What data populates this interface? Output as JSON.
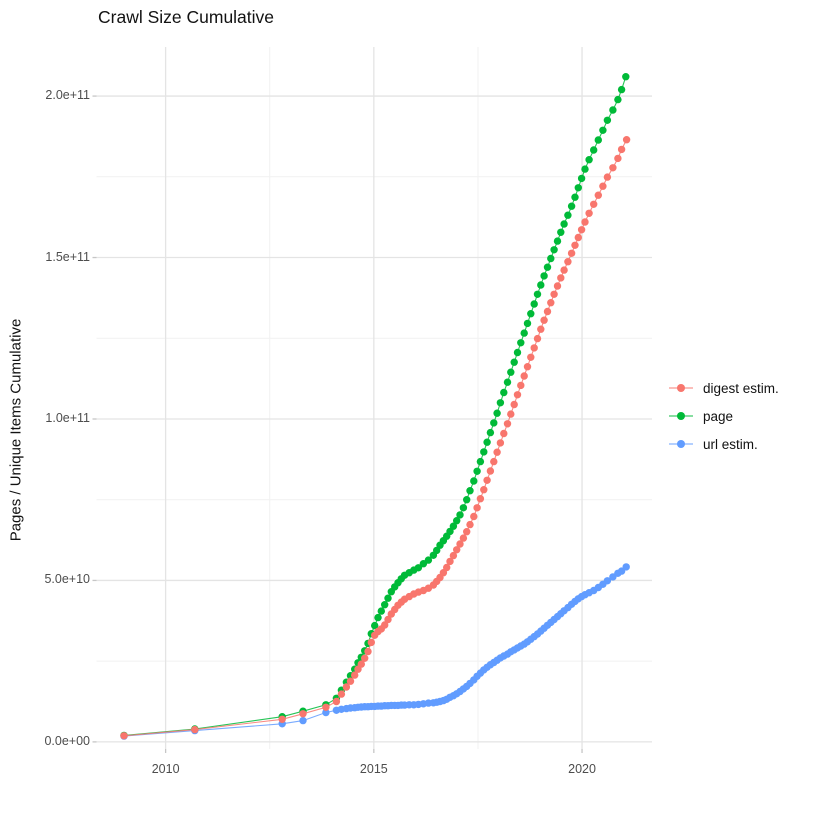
{
  "title": "Crawl Size Cumulative",
  "y_axis_title": "Pages / Unique Items Cumulative",
  "legend": {
    "position": "right",
    "items": [
      {
        "label": "digest estim.",
        "color": "#F8766D"
      },
      {
        "label": "page",
        "color": "#00BA38"
      },
      {
        "label": "url estim.",
        "color": "#619CFF"
      }
    ]
  },
  "colors": {
    "background": "#ffffff",
    "grid_major": "#e4e4e4",
    "grid_minor": "#f1f1f1",
    "tick_mark": "#c6c6c6",
    "tick_text": "#4d4d4d",
    "title_text": "#121212"
  },
  "chart_data": {
    "type": "scatter",
    "title": "Crawl Size Cumulative",
    "xlabel": "",
    "ylabel": "Pages / Unique Items Cumulative",
    "grid": true,
    "legend_position": "right",
    "x_unit": "year",
    "y_unit": "count (values stored in billions, 1e9)",
    "xlim": [
      2008.34,
      2021.68
    ],
    "ylim_e9": [
      -2.2,
      215.2
    ],
    "x_major_ticks": [
      {
        "value": 2010,
        "label": "2010"
      },
      {
        "value": 2015,
        "label": "2015"
      },
      {
        "value": 2020,
        "label": "2020"
      }
    ],
    "x_minor_ticks": [
      2012.5,
      2017.5
    ],
    "y_major_ticks": [
      {
        "value_e9": 0,
        "label": "0.0e+00"
      },
      {
        "value_e9": 50,
        "label": "5.0e+10"
      },
      {
        "value_e9": 100,
        "label": "1.0e+11"
      },
      {
        "value_e9": 150,
        "label": "1.5e+11"
      },
      {
        "value_e9": 200,
        "label": "2.0e+11"
      }
    ],
    "y_minor_ticks_e9": [
      25,
      75,
      125,
      175
    ],
    "series": [
      {
        "name": "digest estim.",
        "color": "#F8766D",
        "points_year_value_e9": [
          [
            2009.0,
            1.9
          ],
          [
            2010.7,
            3.8
          ],
          [
            2012.8,
            7.0
          ],
          [
            2013.3,
            8.7
          ],
          [
            2013.85,
            10.7
          ],
          [
            2014.1,
            12.5
          ],
          [
            2014.22,
            14.8
          ],
          [
            2014.34,
            17.0
          ],
          [
            2014.44,
            18.8
          ],
          [
            2014.54,
            20.7
          ],
          [
            2014.62,
            22.5
          ],
          [
            2014.7,
            24.1
          ],
          [
            2014.78,
            25.9
          ],
          [
            2014.86,
            28.0
          ],
          [
            2014.94,
            30.8
          ],
          [
            2015.02,
            33.0
          ],
          [
            2015.1,
            34.2
          ],
          [
            2015.18,
            35.0
          ],
          [
            2015.26,
            36.2
          ],
          [
            2015.34,
            37.9
          ],
          [
            2015.42,
            39.6
          ],
          [
            2015.5,
            41.0
          ],
          [
            2015.58,
            42.3
          ],
          [
            2015.66,
            43.3
          ],
          [
            2015.74,
            44.2
          ],
          [
            2015.85,
            45.0
          ],
          [
            2015.96,
            45.8
          ],
          [
            2016.07,
            46.4
          ],
          [
            2016.19,
            46.9
          ],
          [
            2016.31,
            47.6
          ],
          [
            2016.43,
            48.6
          ],
          [
            2016.51,
            49.7
          ],
          [
            2016.59,
            50.9
          ],
          [
            2016.67,
            52.4
          ],
          [
            2016.75,
            54.0
          ],
          [
            2016.83,
            55.9
          ],
          [
            2016.91,
            57.7
          ],
          [
            2016.99,
            59.5
          ],
          [
            2017.07,
            61.3
          ],
          [
            2017.15,
            63.1
          ],
          [
            2017.23,
            65.1
          ],
          [
            2017.31,
            67.3
          ],
          [
            2017.4,
            69.8
          ],
          [
            2017.48,
            72.5
          ],
          [
            2017.56,
            75.3
          ],
          [
            2017.64,
            78.1
          ],
          [
            2017.72,
            81.0
          ],
          [
            2017.8,
            83.9
          ],
          [
            2017.88,
            86.8
          ],
          [
            2017.96,
            89.7
          ],
          [
            2018.04,
            92.6
          ],
          [
            2018.12,
            95.5
          ],
          [
            2018.21,
            98.5
          ],
          [
            2018.29,
            101.5
          ],
          [
            2018.37,
            104.5
          ],
          [
            2018.45,
            107.5
          ],
          [
            2018.53,
            110.4
          ],
          [
            2018.61,
            113.3
          ],
          [
            2018.69,
            116.2
          ],
          [
            2018.77,
            119.1
          ],
          [
            2018.85,
            122.0
          ],
          [
            2018.93,
            124.9
          ],
          [
            2019.01,
            127.8
          ],
          [
            2019.09,
            130.6
          ],
          [
            2019.17,
            133.3
          ],
          [
            2019.25,
            136.0
          ],
          [
            2019.33,
            138.6
          ],
          [
            2019.41,
            141.2
          ],
          [
            2019.49,
            143.7
          ],
          [
            2019.57,
            146.1
          ],
          [
            2019.66,
            148.7
          ],
          [
            2019.75,
            151.3
          ],
          [
            2019.83,
            153.8
          ],
          [
            2019.91,
            156.2
          ],
          [
            2019.99,
            158.6
          ],
          [
            2020.07,
            161.0
          ],
          [
            2020.17,
            163.7
          ],
          [
            2020.28,
            166.5
          ],
          [
            2020.39,
            169.3
          ],
          [
            2020.5,
            172.1
          ],
          [
            2020.61,
            174.9
          ],
          [
            2020.74,
            177.8
          ],
          [
            2020.86,
            180.7
          ],
          [
            2020.95,
            183.5
          ],
          [
            2021.07,
            186.5
          ]
        ]
      },
      {
        "name": "page",
        "color": "#00BA38",
        "points_year_value_e9": [
          [
            2009.0,
            2.0
          ],
          [
            2010.7,
            4.0
          ],
          [
            2012.8,
            7.8
          ],
          [
            2013.3,
            9.5
          ],
          [
            2013.85,
            11.5
          ],
          [
            2014.1,
            13.5
          ],
          [
            2014.22,
            16.0
          ],
          [
            2014.34,
            18.5
          ],
          [
            2014.44,
            20.5
          ],
          [
            2014.54,
            22.5
          ],
          [
            2014.62,
            24.5
          ],
          [
            2014.7,
            26.2
          ],
          [
            2014.78,
            28.2
          ],
          [
            2014.86,
            30.5
          ],
          [
            2014.94,
            33.5
          ],
          [
            2015.02,
            36.0
          ],
          [
            2015.1,
            38.5
          ],
          [
            2015.18,
            40.5
          ],
          [
            2015.26,
            42.5
          ],
          [
            2015.34,
            44.5
          ],
          [
            2015.42,
            46.5
          ],
          [
            2015.5,
            48.0
          ],
          [
            2015.58,
            49.3
          ],
          [
            2015.66,
            50.5
          ],
          [
            2015.74,
            51.6
          ],
          [
            2015.85,
            52.4
          ],
          [
            2015.96,
            53.2
          ],
          [
            2016.07,
            53.9
          ],
          [
            2016.19,
            55.2
          ],
          [
            2016.31,
            56.3
          ],
          [
            2016.43,
            57.8
          ],
          [
            2016.51,
            59.3
          ],
          [
            2016.59,
            60.9
          ],
          [
            2016.67,
            62.3
          ],
          [
            2016.75,
            63.7
          ],
          [
            2016.83,
            65.2
          ],
          [
            2016.91,
            66.8
          ],
          [
            2016.99,
            68.5
          ],
          [
            2017.07,
            70.3
          ],
          [
            2017.15,
            72.5
          ],
          [
            2017.23,
            75.0
          ],
          [
            2017.31,
            77.8
          ],
          [
            2017.4,
            80.8
          ],
          [
            2017.48,
            83.8
          ],
          [
            2017.56,
            86.8
          ],
          [
            2017.64,
            89.8
          ],
          [
            2017.72,
            92.8
          ],
          [
            2017.8,
            95.8
          ],
          [
            2017.88,
            98.8
          ],
          [
            2017.96,
            101.8
          ],
          [
            2018.04,
            105.0
          ],
          [
            2018.12,
            108.2
          ],
          [
            2018.21,
            111.4
          ],
          [
            2018.29,
            114.5
          ],
          [
            2018.37,
            117.6
          ],
          [
            2018.45,
            120.6
          ],
          [
            2018.53,
            123.6
          ],
          [
            2018.61,
            126.6
          ],
          [
            2018.69,
            129.6
          ],
          [
            2018.77,
            132.6
          ],
          [
            2018.85,
            135.6
          ],
          [
            2018.93,
            138.6
          ],
          [
            2019.01,
            141.5
          ],
          [
            2019.09,
            144.3
          ],
          [
            2019.17,
            147.0
          ],
          [
            2019.25,
            149.7
          ],
          [
            2019.33,
            152.4
          ],
          [
            2019.41,
            155.1
          ],
          [
            2019.49,
            157.8
          ],
          [
            2019.57,
            160.4
          ],
          [
            2019.66,
            163.1
          ],
          [
            2019.75,
            165.9
          ],
          [
            2019.83,
            168.7
          ],
          [
            2019.91,
            171.6
          ],
          [
            2019.99,
            174.5
          ],
          [
            2020.07,
            177.4
          ],
          [
            2020.17,
            180.3
          ],
          [
            2020.28,
            183.3
          ],
          [
            2020.39,
            186.4
          ],
          [
            2020.5,
            189.4
          ],
          [
            2020.61,
            192.5
          ],
          [
            2020.74,
            195.7
          ],
          [
            2020.86,
            198.9
          ],
          [
            2020.95,
            202.0
          ],
          [
            2021.05,
            206.0
          ]
        ]
      },
      {
        "name": "url estim.",
        "color": "#619CFF",
        "points_year_value_e9": [
          [
            2009.0,
            1.8
          ],
          [
            2010.7,
            3.5
          ],
          [
            2012.8,
            5.6
          ],
          [
            2013.3,
            6.6
          ],
          [
            2013.85,
            9.1
          ],
          [
            2014.1,
            9.8
          ],
          [
            2014.22,
            10.1
          ],
          [
            2014.34,
            10.3
          ],
          [
            2014.44,
            10.5
          ],
          [
            2014.54,
            10.6
          ],
          [
            2014.62,
            10.7
          ],
          [
            2014.7,
            10.8
          ],
          [
            2014.78,
            10.9
          ],
          [
            2014.86,
            10.9
          ],
          [
            2014.94,
            11.0
          ],
          [
            2015.02,
            11.0
          ],
          [
            2015.1,
            11.1
          ],
          [
            2015.18,
            11.1
          ],
          [
            2015.26,
            11.2
          ],
          [
            2015.34,
            11.2
          ],
          [
            2015.42,
            11.3
          ],
          [
            2015.5,
            11.3
          ],
          [
            2015.58,
            11.3
          ],
          [
            2015.66,
            11.4
          ],
          [
            2015.74,
            11.4
          ],
          [
            2015.85,
            11.5
          ],
          [
            2015.96,
            11.5
          ],
          [
            2016.07,
            11.6
          ],
          [
            2016.19,
            11.8
          ],
          [
            2016.31,
            12.0
          ],
          [
            2016.43,
            12.1
          ],
          [
            2016.51,
            12.3
          ],
          [
            2016.59,
            12.5
          ],
          [
            2016.67,
            12.8
          ],
          [
            2016.75,
            13.2
          ],
          [
            2016.83,
            13.8
          ],
          [
            2016.91,
            14.3
          ],
          [
            2016.99,
            14.9
          ],
          [
            2017.07,
            15.6
          ],
          [
            2017.15,
            16.4
          ],
          [
            2017.23,
            17.2
          ],
          [
            2017.31,
            18.1
          ],
          [
            2017.4,
            19.2
          ],
          [
            2017.48,
            20.3
          ],
          [
            2017.56,
            21.3
          ],
          [
            2017.64,
            22.3
          ],
          [
            2017.72,
            23.1
          ],
          [
            2017.8,
            23.9
          ],
          [
            2017.88,
            24.6
          ],
          [
            2017.96,
            25.3
          ],
          [
            2018.04,
            26.0
          ],
          [
            2018.12,
            26.6
          ],
          [
            2018.21,
            27.2
          ],
          [
            2018.29,
            27.9
          ],
          [
            2018.37,
            28.5
          ],
          [
            2018.45,
            29.1
          ],
          [
            2018.53,
            29.7
          ],
          [
            2018.61,
            30.3
          ],
          [
            2018.69,
            31.0
          ],
          [
            2018.77,
            31.8
          ],
          [
            2018.85,
            32.6
          ],
          [
            2018.93,
            33.4
          ],
          [
            2019.01,
            34.3
          ],
          [
            2019.09,
            35.2
          ],
          [
            2019.17,
            36.1
          ],
          [
            2019.25,
            37.0
          ],
          [
            2019.33,
            37.9
          ],
          [
            2019.41,
            38.8
          ],
          [
            2019.49,
            39.7
          ],
          [
            2019.57,
            40.6
          ],
          [
            2019.66,
            41.6
          ],
          [
            2019.75,
            42.6
          ],
          [
            2019.83,
            43.5
          ],
          [
            2019.91,
            44.3
          ],
          [
            2019.99,
            45.0
          ],
          [
            2020.07,
            45.6
          ],
          [
            2020.17,
            46.2
          ],
          [
            2020.28,
            46.9
          ],
          [
            2020.39,
            47.8
          ],
          [
            2020.5,
            48.8
          ],
          [
            2020.61,
            49.9
          ],
          [
            2020.74,
            51.1
          ],
          [
            2020.86,
            52.2
          ],
          [
            2020.95,
            52.9
          ],
          [
            2021.06,
            54.2
          ]
        ]
      }
    ]
  }
}
